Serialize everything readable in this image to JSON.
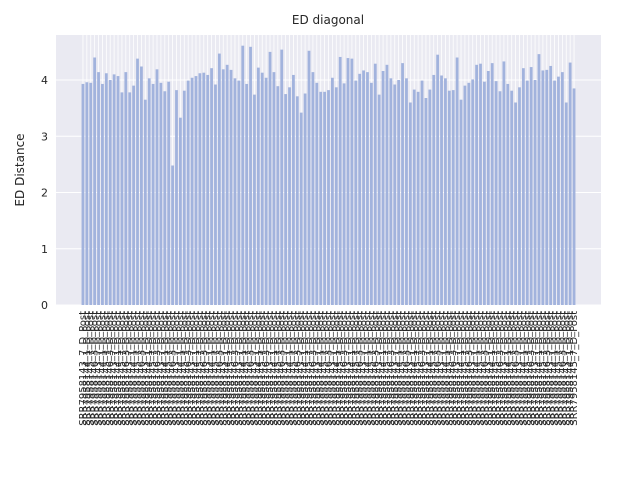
{
  "chart_data": {
    "type": "bar",
    "title": "ED diagonal",
    "xlabel": "",
    "ylabel": "ED Distance",
    "ylim": [
      0,
      4.8
    ],
    "yticks": [
      0,
      1,
      2,
      3,
      4
    ],
    "grid": true,
    "legend": "none",
    "colors": {
      "bar": "#a2b3dd",
      "plot_bg": "#eaeaf2",
      "grid": "#ffffff",
      "text": "#262626"
    },
    "visible_tick_labels": [
      "SRR7958143_7_D_Post",
      "SRR7958144_1_D_Post",
      "SRR7958145_7_D_Post",
      "SRR7958146_3_D_Post"
    ],
    "values": [
      3.93,
      3.96,
      3.95,
      4.4,
      4.14,
      3.93,
      4.12,
      4.0,
      4.1,
      4.07,
      3.78,
      4.14,
      3.78,
      3.9,
      4.38,
      4.24,
      3.65,
      4.03,
      3.93,
      4.19,
      3.95,
      3.8,
      3.97,
      2.48,
      3.82,
      3.33,
      3.81,
      3.99,
      4.04,
      4.07,
      4.12,
      4.13,
      4.09,
      4.21,
      3.92,
      4.47,
      4.19,
      4.27,
      4.18,
      4.03,
      3.99,
      4.61,
      3.93,
      4.59,
      3.74,
      4.22,
      4.13,
      4.04,
      4.5,
      4.14,
      3.89,
      4.54,
      3.75,
      3.87,
      4.09,
      3.71,
      3.42,
      3.76,
      4.52,
      4.14,
      3.95,
      3.79,
      3.79,
      3.82,
      4.04,
      3.87,
      4.41,
      3.94,
      4.39,
      4.38,
      3.99,
      4.11,
      4.17,
      4.14,
      3.95,
      4.29,
      3.74,
      4.16,
      4.27,
      4.03,
      3.92,
      4.0,
      4.3,
      4.03,
      3.6,
      3.83,
      3.79,
      3.99,
      3.68,
      3.83,
      4.09,
      4.45,
      4.08,
      4.03,
      3.81,
      3.82,
      4.4,
      3.65,
      3.9,
      3.95,
      4.01,
      4.27,
      4.29,
      3.97,
      4.16,
      4.3,
      3.98,
      3.8,
      4.33,
      3.93,
      3.81,
      3.6,
      3.87,
      4.21,
      3.99,
      4.23,
      4.0,
      4.46,
      4.17,
      4.18,
      4.25,
      3.99,
      4.06,
      4.14,
      3.6,
      4.31,
      3.85
    ]
  }
}
